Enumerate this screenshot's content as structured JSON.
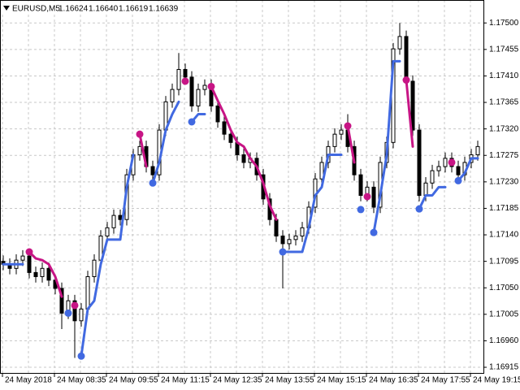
{
  "chart_data": {
    "type": "candlestick",
    "title": "EURUSD,M5",
    "quote": [
      "1.16624",
      "1.16640",
      "1.16619",
      "1.16639"
    ],
    "categories": [
      "24 May 2018",
      null,
      null,
      null,
      null,
      null,
      null,
      null,
      "24 May 08:35",
      null,
      null,
      null,
      null,
      null,
      null,
      null,
      "24 May 09:55",
      null,
      null,
      null,
      null,
      null,
      null,
      null,
      "24 May 11:15",
      null,
      null,
      null,
      null,
      null,
      null,
      null,
      "24 May 12:35",
      null,
      null,
      null,
      null,
      null,
      null,
      null,
      "24 May 13:55",
      null,
      null,
      null,
      null,
      null,
      null,
      null,
      "24 May 15:15",
      null,
      null,
      null,
      null,
      null,
      null,
      null,
      "24 May 16:35",
      null,
      null,
      null,
      null,
      null,
      null,
      null,
      "24 May 17:55",
      null,
      null,
      null,
      null,
      null,
      null,
      null,
      "24 May 19:15",
      null
    ],
    "candles": [
      [
        1.17095,
        1.17105,
        1.1708,
        1.1709
      ],
      [
        1.1709,
        1.171,
        1.17073,
        1.17083
      ],
      [
        1.17083,
        1.17107,
        1.17073,
        1.17097
      ],
      [
        1.17097,
        1.17114,
        1.17087,
        1.17104
      ],
      [
        1.17104,
        1.17114,
        1.17066,
        1.17076
      ],
      [
        1.17076,
        1.17086,
        1.17059,
        1.17069
      ],
      [
        1.17069,
        1.17093,
        1.17059,
        1.17083
      ],
      [
        1.17083,
        1.17093,
        1.17053,
        1.17063
      ],
      [
        1.17063,
        1.17073,
        1.17039,
        1.17049
      ],
      [
        1.17049,
        1.17059,
        1.1698,
        1.17007
      ],
      [
        1.17007,
        1.17038,
        1.16997,
        1.17028
      ],
      [
        1.17028,
        1.17038,
        1.16931,
        1.16994
      ],
      [
        1.16994,
        1.17024,
        1.16984,
        1.17014
      ],
      [
        1.17014,
        1.17079,
        1.17004,
        1.17069
      ],
      [
        1.17069,
        1.17107,
        1.17059,
        1.17097
      ],
      [
        1.17097,
        1.17148,
        1.17087,
        1.17138
      ],
      [
        1.17138,
        1.17162,
        1.17128,
        1.17152
      ],
      [
        1.17152,
        1.17183,
        1.17142,
        1.17173
      ],
      [
        1.17173,
        1.17183,
        1.17156,
        1.17166
      ],
      [
        1.17166,
        1.17252,
        1.17156,
        1.17242
      ],
      [
        1.17242,
        1.17286,
        1.17232,
        1.17276
      ],
      [
        1.17276,
        1.173,
        1.17266,
        1.1729
      ],
      [
        1.1729,
        1.173,
        1.17246,
        1.17256
      ],
      [
        1.17256,
        1.17266,
        1.17232,
        1.17242
      ],
      [
        1.17242,
        1.17328,
        1.17232,
        1.17318
      ],
      [
        1.17318,
        1.17376,
        1.17308,
        1.17366
      ],
      [
        1.17366,
        1.17397,
        1.17356,
        1.17387
      ],
      [
        1.17387,
        1.17449,
        1.17377,
        1.17421
      ],
      [
        1.17421,
        1.17431,
        1.17398,
        1.17408
      ],
      [
        1.17408,
        1.17418,
        1.17349,
        1.17359
      ],
      [
        1.17359,
        1.17397,
        1.17349,
        1.17387
      ],
      [
        1.17387,
        1.17404,
        1.17377,
        1.17394
      ],
      [
        1.17394,
        1.17404,
        1.17349,
        1.17359
      ],
      [
        1.17359,
        1.17369,
        1.17322,
        1.17332
      ],
      [
        1.17332,
        1.17342,
        1.17301,
        1.17311
      ],
      [
        1.17311,
        1.17321,
        1.17287,
        1.17297
      ],
      [
        1.17297,
        1.17307,
        1.17266,
        1.17276
      ],
      [
        1.17276,
        1.17286,
        1.17253,
        1.17263
      ],
      [
        1.17263,
        1.1728,
        1.17253,
        1.1727
      ],
      [
        1.1727,
        1.1728,
        1.17232,
        1.17242
      ],
      [
        1.17242,
        1.17252,
        1.17191,
        1.17201
      ],
      [
        1.17201,
        1.17211,
        1.17156,
        1.17166
      ],
      [
        1.17166,
        1.17176,
        1.17128,
        1.17138
      ],
      [
        1.17138,
        1.17148,
        1.17049,
        1.17125
      ],
      [
        1.17125,
        1.17142,
        1.17115,
        1.17132
      ],
      [
        1.17132,
        1.17148,
        1.17122,
        1.17138
      ],
      [
        1.17138,
        1.17162,
        1.17128,
        1.17152
      ],
      [
        1.17152,
        1.17197,
        1.17142,
        1.17187
      ],
      [
        1.17187,
        1.17245,
        1.17177,
        1.17235
      ],
      [
        1.17235,
        1.17273,
        1.17225,
        1.17263
      ],
      [
        1.17263,
        1.173,
        1.17253,
        1.1729
      ],
      [
        1.1729,
        1.17321,
        1.1728,
        1.17311
      ],
      [
        1.17311,
        1.17328,
        1.17301,
        1.17318
      ],
      [
        1.17318,
        1.17345,
        1.1728,
        1.1729
      ],
      [
        1.1729,
        1.173,
        1.17232,
        1.17242
      ],
      [
        1.17242,
        1.17252,
        1.17197,
        1.17207
      ],
      [
        1.17207,
        1.17231,
        1.17197,
        1.17221
      ],
      [
        1.17221,
        1.17231,
        1.17177,
        1.17187
      ],
      [
        1.17187,
        1.17273,
        1.17177,
        1.17263
      ],
      [
        1.17263,
        1.17307,
        1.17253,
        1.17297
      ],
      [
        1.17297,
        1.17466,
        1.17287,
        1.17456
      ],
      [
        1.17456,
        1.175,
        1.17446,
        1.17477
      ],
      [
        1.17477,
        1.17487,
        1.17391,
        1.17401
      ],
      [
        1.17401,
        1.17411,
        1.17308,
        1.17318
      ],
      [
        1.17318,
        1.17328,
        1.17197,
        1.17207
      ],
      [
        1.17207,
        1.17238,
        1.17197,
        1.17228
      ],
      [
        1.17228,
        1.17259,
        1.17218,
        1.17249
      ],
      [
        1.17249,
        1.17266,
        1.17239,
        1.17256
      ],
      [
        1.17256,
        1.1728,
        1.17246,
        1.1727
      ],
      [
        1.1727,
        1.1728,
        1.17246,
        1.17256
      ],
      [
        1.17256,
        1.17266,
        1.17232,
        1.17242
      ],
      [
        1.17242,
        1.17273,
        1.17232,
        1.17263
      ],
      [
        1.17263,
        1.17286,
        1.17253,
        1.17276
      ],
      [
        1.17276,
        1.173,
        1.17266,
        1.1729
      ]
    ],
    "candle_color": "#000000",
    "lines": [
      {
        "color": "#4169e1",
        "values": [
          1.1709,
          1.1709,
          1.1709,
          1.1709,
          null,
          null,
          null,
          null,
          null,
          null,
          1.17007,
          null,
          1.16934,
          1.17014,
          1.17028,
          1.1709,
          1.17132,
          1.17132,
          1.17132,
          1.17221,
          1.17276,
          null,
          null,
          1.17228,
          1.17263,
          1.17318,
          1.17345,
          1.17366,
          null,
          1.17332,
          1.17345,
          1.17345,
          null,
          null,
          null,
          null,
          null,
          null,
          null,
          null,
          null,
          null,
          null,
          1.17111,
          1.17111,
          1.17111,
          1.17111,
          1.17152,
          1.17207,
          1.17221,
          1.17276,
          1.17276,
          1.17276,
          null,
          null,
          1.17183,
          null,
          1.17144,
          1.17207,
          1.17276,
          1.17435,
          1.17435,
          null,
          null,
          1.17184,
          1.17207,
          1.17207,
          1.17221,
          1.17221,
          null,
          1.17232,
          1.17245,
          1.1727,
          1.1727
        ]
      },
      {
        "color": "#c71585",
        "values": [
          null,
          null,
          null,
          null,
          1.17111,
          1.171,
          1.17097,
          1.1709,
          1.17069,
          1.17035,
          null,
          1.1702,
          null,
          null,
          null,
          null,
          null,
          null,
          null,
          null,
          null,
          1.17311,
          1.17256,
          null,
          null,
          null,
          null,
          null,
          1.17401,
          null,
          null,
          null,
          1.17392,
          1.17368,
          1.17345,
          1.17318,
          1.17297,
          1.1729,
          1.1727,
          1.17256,
          1.17228,
          1.1719,
          1.17166,
          null,
          null,
          null,
          null,
          null,
          null,
          null,
          null,
          null,
          null,
          1.17325,
          1.17263,
          null,
          1.17205,
          null,
          null,
          null,
          null,
          null,
          1.17403,
          1.1729,
          null,
          null,
          null,
          null,
          null,
          1.17263,
          null,
          null,
          null,
          null
        ]
      }
    ],
    "ylim": [
      1.16904,
      1.17539
    ],
    "yticks": [
      {
        "value": 1.16915,
        "label": "1.16915"
      },
      {
        "value": 1.1696,
        "label": "1.16960"
      },
      {
        "value": 1.17005,
        "label": "1.17005"
      },
      {
        "value": 1.1705,
        "label": "1.17050"
      },
      {
        "value": 1.17095,
        "label": "1.17095"
      },
      {
        "value": 1.1714,
        "label": "1.17140"
      },
      {
        "value": 1.17185,
        "label": "1.17185"
      },
      {
        "value": 1.1723,
        "label": "1.17230"
      },
      {
        "value": 1.17275,
        "label": "1.17275"
      },
      {
        "value": 1.1732,
        "label": "1.17320"
      },
      {
        "value": 1.17365,
        "label": "1.17365"
      },
      {
        "value": 1.1741,
        "label": "1.17410"
      },
      {
        "value": 1.17455,
        "label": "1.17455"
      },
      {
        "value": 1.175,
        "label": "1.17500"
      }
    ],
    "grid": true
  }
}
